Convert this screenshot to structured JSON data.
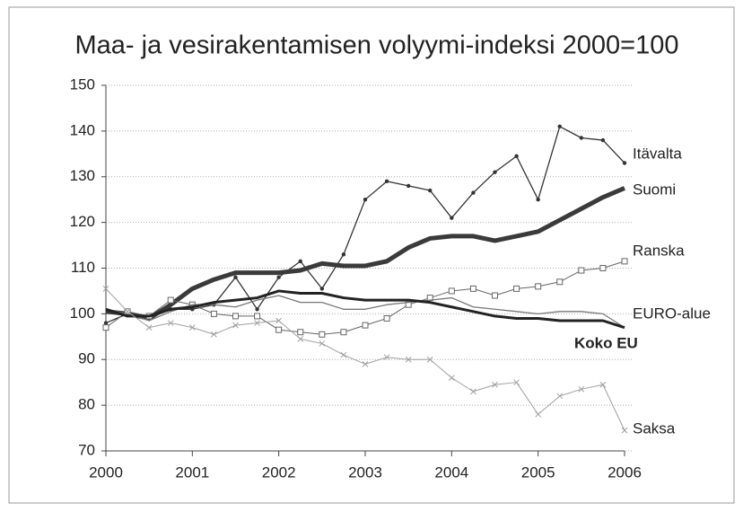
{
  "chart_data": {
    "type": "line",
    "title": "Maa- ja vesirakentamisen volyymi-indeksi 2000=100",
    "x": [
      2000,
      2000.25,
      2000.5,
      2000.75,
      2001,
      2001.25,
      2001.5,
      2001.75,
      2002,
      2002.25,
      2002.5,
      2002.75,
      2003,
      2003.25,
      2003.5,
      2003.75,
      2004,
      2004.25,
      2004.5,
      2004.75,
      2005,
      2005.25,
      2005.5,
      2005.75,
      2006
    ],
    "series": [
      {
        "name": "Itävalta",
        "color": "#333333",
        "line_width": 1.3,
        "marker": "dot",
        "values": [
          98,
          100,
          99,
          101,
          101,
          102,
          108,
          101,
          108,
          111.5,
          105.5,
          113,
          125,
          129,
          128,
          127,
          121,
          126.5,
          131,
          134.5,
          125,
          141,
          138.5,
          138,
          133
        ]
      },
      {
        "name": "Suomi",
        "color": "#3a3a3a",
        "line_width": 5,
        "marker": "none",
        "values": [
          100.5,
          100,
          99,
          102,
          105.5,
          107.5,
          109,
          109,
          109,
          109.5,
          111,
          110.5,
          110.5,
          111.5,
          114.5,
          116.5,
          117,
          117,
          116,
          117,
          118,
          120.5,
          123,
          125.5,
          127.5
        ]
      },
      {
        "name": "Ranska",
        "color": "#666666",
        "line_width": 1,
        "marker": "square",
        "values": [
          97,
          100.5,
          99.5,
          103,
          102,
          100,
          99.5,
          99.5,
          96.5,
          96,
          95.5,
          96,
          97.5,
          99,
          102,
          103.5,
          105,
          105.5,
          104,
          105.5,
          106,
          107,
          109.5,
          110,
          111.5
        ]
      },
      {
        "name": "EURO-alue",
        "color": "#777777",
        "line_width": 1.3,
        "marker": "none",
        "values": [
          101,
          100,
          98.5,
          100.5,
          102,
          102,
          101.5,
          103,
          104,
          102.5,
          102.5,
          101,
          101,
          102,
          102.5,
          103,
          103.5,
          101.5,
          101,
          100.5,
          100,
          100.5,
          100.5,
          100,
          97
        ]
      },
      {
        "name": "Koko EU",
        "color": "#222222",
        "line_width": 3,
        "marker": "none",
        "values": [
          101,
          99.5,
          99.5,
          101,
          101.5,
          102.5,
          103,
          103.5,
          105,
          104.5,
          104.5,
          103.5,
          103,
          103,
          103,
          102.5,
          101.5,
          100.5,
          99.5,
          99,
          99,
          98.5,
          98.5,
          98.5,
          97
        ]
      },
      {
        "name": "Saksa",
        "color": "#a0a0a0",
        "line_width": 1,
        "marker": "cross",
        "values": [
          105.5,
          100.5,
          97,
          98,
          97,
          95.5,
          97.5,
          98,
          98.5,
          94.5,
          93.5,
          91,
          89,
          90.5,
          90,
          90,
          86,
          83,
          84.5,
          85,
          78,
          82,
          83.5,
          84.5,
          74.5
        ]
      }
    ],
    "xlim": [
      2000,
      2006
    ],
    "xticks": [
      2000,
      2001,
      2002,
      2003,
      2004,
      2005,
      2006
    ],
    "ylim": [
      70,
      150
    ],
    "yticks": [
      70,
      80,
      90,
      100,
      110,
      120,
      130,
      140,
      150
    ],
    "grid": true
  }
}
